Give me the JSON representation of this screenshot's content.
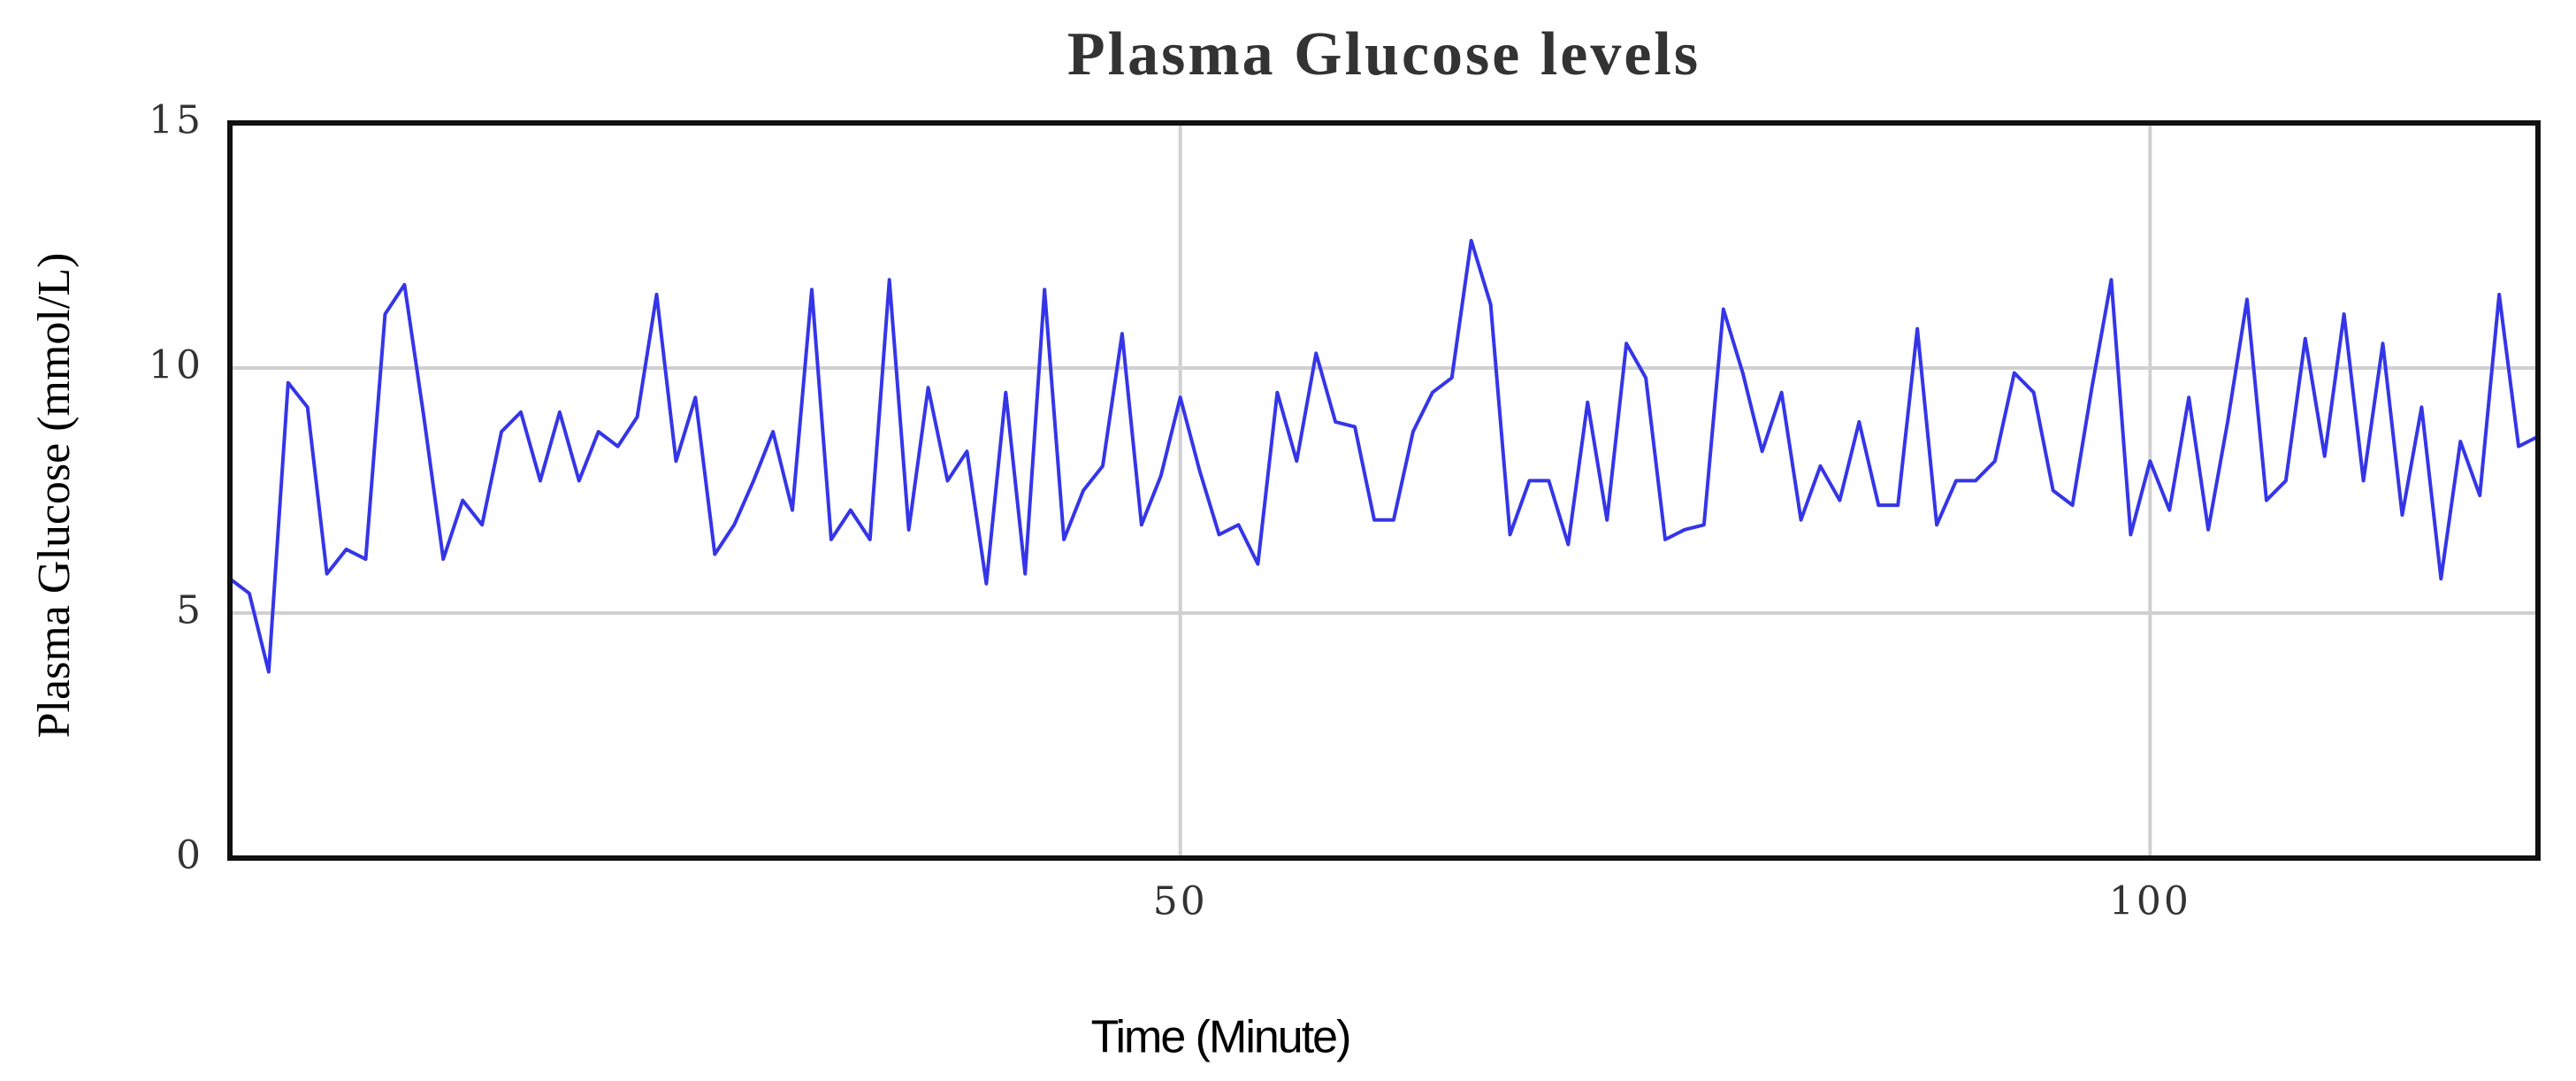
{
  "chart_data": {
    "type": "line",
    "title": "Plasma Glucose levels",
    "x_label": "Time (Minute)",
    "y_label": "Plasma Glucose (mmol/L)",
    "xlim": [
      1,
      120
    ],
    "xticks": [
      50,
      100
    ],
    "ylim": [
      0,
      15
    ],
    "yticks": [
      0,
      5,
      10,
      15
    ],
    "grid": true,
    "x": [
      1,
      2,
      3,
      4,
      5,
      6,
      7,
      8,
      9,
      10,
      11,
      12,
      13,
      14,
      15,
      16,
      17,
      18,
      19,
      20,
      21,
      22,
      23,
      24,
      25,
      26,
      27,
      28,
      29,
      30,
      31,
      32,
      33,
      34,
      35,
      36,
      37,
      38,
      39,
      40,
      41,
      42,
      43,
      44,
      45,
      46,
      47,
      48,
      49,
      50,
      51,
      52,
      53,
      54,
      55,
      56,
      57,
      58,
      59,
      60,
      61,
      62,
      63,
      64,
      65,
      66,
      67,
      68,
      69,
      70,
      71,
      72,
      73,
      74,
      75,
      76,
      77,
      78,
      79,
      80,
      81,
      82,
      83,
      84,
      85,
      86,
      87,
      88,
      89,
      90,
      91,
      92,
      93,
      94,
      95,
      96,
      97,
      98,
      99,
      100,
      101,
      102,
      103,
      104,
      105,
      106,
      107,
      108,
      109,
      110,
      111,
      112,
      113,
      114,
      115,
      116,
      117,
      118,
      119,
      120
    ],
    "series": [
      {
        "name": "Plasma Glucose",
        "color": "#3535e8",
        "values": [
          5.7,
          5.4,
          3.8,
          9.7,
          9.2,
          5.8,
          6.3,
          6.1,
          11.1,
          11.7,
          9.0,
          6.1,
          7.3,
          6.8,
          8.7,
          9.1,
          7.7,
          9.1,
          7.7,
          8.7,
          8.4,
          9.0,
          11.5,
          8.1,
          9.4,
          6.2,
          6.8,
          7.7,
          8.7,
          7.1,
          11.6,
          6.5,
          7.1,
          6.5,
          11.8,
          6.7,
          9.6,
          7.7,
          8.3,
          5.6,
          9.5,
          5.8,
          11.6,
          6.5,
          7.5,
          8.0,
          10.7,
          6.8,
          7.8,
          9.4,
          7.9,
          6.6,
          6.8,
          6.0,
          9.5,
          8.1,
          10.3,
          8.9,
          8.8,
          6.9,
          6.9,
          8.7,
          9.5,
          9.8,
          12.6,
          11.3,
          6.6,
          7.7,
          7.7,
          6.4,
          9.3,
          6.9,
          10.5,
          9.8,
          6.5,
          6.7,
          6.8,
          11.2,
          9.9,
          8.3,
          9.5,
          6.9,
          8.0,
          7.3,
          8.9,
          7.2,
          7.2,
          10.8,
          6.8,
          7.7,
          7.7,
          8.1,
          9.9,
          9.5,
          7.5,
          7.2,
          9.6,
          11.8,
          6.6,
          8.1,
          7.1,
          9.4,
          6.7,
          8.9,
          11.4,
          7.3,
          7.7,
          10.6,
          8.2,
          11.1,
          7.7,
          10.5,
          7.0,
          9.2,
          5.7,
          8.5,
          7.4,
          11.5,
          8.4,
          8.6
        ]
      }
    ]
  }
}
